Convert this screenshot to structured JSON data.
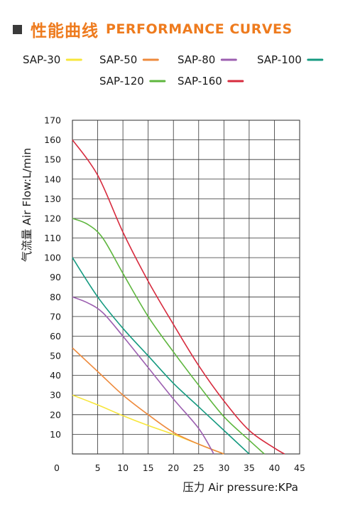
{
  "header": {
    "title_cn": "性能曲线",
    "title_en": "PERFORMANCE CURVES"
  },
  "chart_data": {
    "type": "line",
    "xlabel": "压力 Air pressure:KPa",
    "ylabel": "气流量 Air Flow:L/min",
    "xlim": [
      0,
      45
    ],
    "ylim": [
      0,
      170
    ],
    "x_ticks": [
      0,
      5,
      10,
      15,
      20,
      25,
      30,
      35,
      40,
      45
    ],
    "y_ticks": [
      10,
      20,
      30,
      40,
      50,
      60,
      70,
      80,
      90,
      100,
      110,
      120,
      130,
      140,
      150,
      160,
      170
    ],
    "grid": true,
    "legend_position": "top",
    "series": [
      {
        "name": "SAP-30",
        "color": "#f7e63a",
        "x": [
          0,
          5,
          10,
          15,
          20,
          25,
          30
        ],
        "y": [
          30,
          25,
          19.5,
          14.5,
          10,
          5,
          0
        ]
      },
      {
        "name": "SAP-50",
        "color": "#ee8a3c",
        "x": [
          0,
          5,
          10,
          15,
          20,
          25,
          30
        ],
        "y": [
          54,
          42,
          30,
          20,
          11,
          5,
          0
        ]
      },
      {
        "name": "SAP-80",
        "color": "#9c5fb0",
        "x": [
          0,
          3,
          6,
          10,
          15,
          20,
          25,
          28
        ],
        "y": [
          80,
          77,
          72,
          60,
          44,
          28,
          13,
          0
        ]
      },
      {
        "name": "SAP-100",
        "color": "#159a80",
        "x": [
          0,
          5,
          10,
          15,
          20,
          25,
          30,
          35
        ],
        "y": [
          100,
          80,
          64,
          50,
          36,
          24,
          12,
          0
        ]
      },
      {
        "name": "SAP-120",
        "color": "#5eb63e",
        "x": [
          0,
          3,
          6,
          10,
          15,
          20,
          25,
          30,
          35,
          38
        ],
        "y": [
          120,
          117,
          110,
          92,
          70,
          52,
          35,
          19,
          7,
          0
        ]
      },
      {
        "name": "SAP-160",
        "color": "#d72b3e",
        "x": [
          0,
          5,
          10,
          15,
          20,
          25,
          30,
          35,
          40,
          42
        ],
        "y": [
          160,
          142,
          113,
          88,
          66,
          45,
          27,
          12,
          3,
          0
        ]
      }
    ]
  }
}
